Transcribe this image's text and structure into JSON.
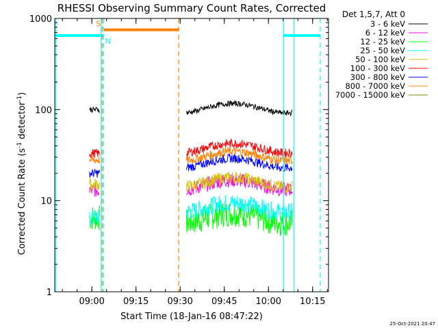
{
  "chart_data": {
    "type": "line",
    "title": "RHESSI Observing Summary Count Rates, Corrected",
    "xlabel": "Start Time (18-Jan-16 08:47:22)",
    "ylabel_main": "Corrected Count Rate (s",
    "ylabel_sup1": "-1",
    "ylabel_mid": " detector",
    "ylabel_sup2": "-1",
    "ylabel_end": ")",
    "yscale": "log",
    "ylim": [
      1,
      1000
    ],
    "xlim_min": [
      0,
      93
    ],
    "yticks": [
      {
        "v": 1,
        "label": "1"
      },
      {
        "v": 10,
        "label": "10"
      },
      {
        "v": 100,
        "label": "100"
      },
      {
        "v": 1000,
        "label": "1000"
      }
    ],
    "xticks": [
      {
        "v": 12.6,
        "label": "09:00"
      },
      {
        "v": 27.6,
        "label": "09:15"
      },
      {
        "v": 42.6,
        "label": "09:30"
      },
      {
        "v": 57.6,
        "label": "09:45"
      },
      {
        "v": 72.6,
        "label": "10:00"
      },
      {
        "v": 87.6,
        "label": "10:15"
      }
    ],
    "legend": {
      "header": "Det 1,5,7, Att 0",
      "placement": "top-right outside"
    },
    "series": [
      {
        "name": "3 - 6 keV",
        "color": "#000000",
        "seg1": 100,
        "seg2": 104,
        "noise": 0.03
      },
      {
        "name": "6 - 12 keV",
        "color": "#ff00ff",
        "seg1": 13,
        "seg2": 15,
        "noise": 0.08
      },
      {
        "name": "12 - 25 keV",
        "color": "#00ff00",
        "seg1": 6.5,
        "seg2": 6.5,
        "noise": 0.15
      },
      {
        "name": "25 - 50 keV",
        "color": "#00ffff",
        "seg1": 6.5,
        "seg2": 8.5,
        "noise": 0.1
      },
      {
        "name": "50 - 100 keV",
        "color": "#d4c000",
        "seg1": 15,
        "seg2": 16,
        "noise": 0.07
      },
      {
        "name": "100 - 300 keV",
        "color": "#ff0000",
        "seg1": 33,
        "seg2": 38,
        "noise": 0.05
      },
      {
        "name": "300 - 800 keV",
        "color": "#0000ff",
        "seg1": 20,
        "seg2": 26,
        "noise": 0.05
      },
      {
        "name": "800 - 7000 keV",
        "color": "#ff8000",
        "seg1": 28,
        "seg2": 31,
        "noise": 0.05
      },
      {
        "name": "7000 - 15000 keV",
        "color": "#808000",
        "seg1": 0,
        "seg2": 0,
        "noise": 0
      }
    ],
    "segments": [
      {
        "x_start": 11.8,
        "x_end": 15.2
      },
      {
        "x_start": 44.7,
        "x_end": 80.7
      }
    ],
    "flags": [
      {
        "label": "S",
        "color": "#ff8000",
        "x_start": 16.7,
        "x_end": 42.1,
        "y": 750
      },
      {
        "label": "N",
        "color": "#00ffff",
        "x_start": 0,
        "x_end": 16.7,
        "y": 650
      },
      {
        "label": "",
        "color": "#00ffff",
        "x_start": 77.7,
        "x_end": 90.2,
        "y": 650
      }
    ],
    "vlines": [
      {
        "x": 0.4,
        "color": "#00ffff",
        "style": "solid"
      },
      {
        "x": 15.8,
        "color": "#00ffff",
        "style": "solid"
      },
      {
        "x": 16.6,
        "color": "#00ffff",
        "style": "dashed"
      },
      {
        "x": 16.1,
        "color": "#ff8000",
        "style": "dashed"
      },
      {
        "x": 42.1,
        "color": "#ff8000",
        "style": "dashed"
      },
      {
        "x": 77.7,
        "color": "#00ffff",
        "style": "solid"
      },
      {
        "x": 81.3,
        "color": "#00ffff",
        "style": "solid"
      },
      {
        "x": 90.2,
        "color": "#00ffff",
        "style": "dashed"
      }
    ],
    "grid": false
  },
  "footer": {
    "date_stamp": "25-Oct-2021 20:47"
  }
}
